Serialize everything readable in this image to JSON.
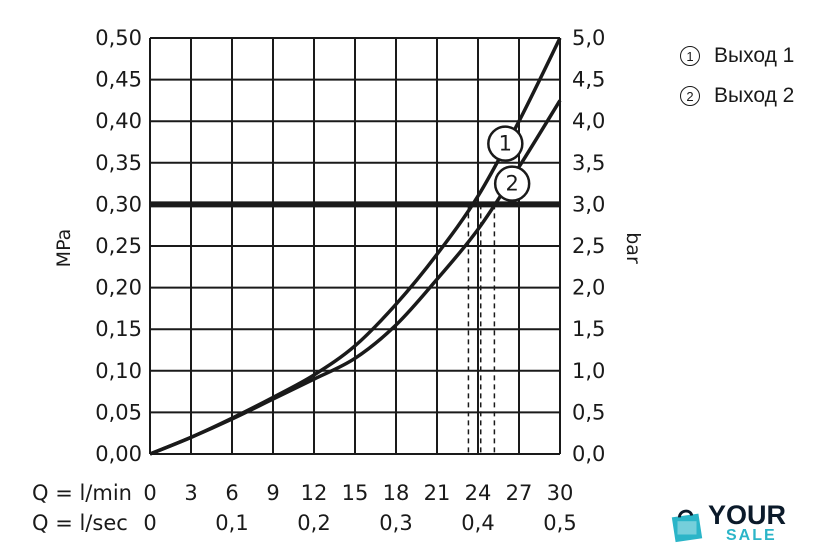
{
  "chart_data": {
    "type": "line",
    "ylabel_left": "MPa",
    "ylabel_right": "bar",
    "x_row1_label": "Q = l/min",
    "x_row2_label": "Q = l/sec",
    "x_range": [
      0,
      30
    ],
    "y_range": [
      0,
      0.5
    ],
    "x_ticks_lmin": [
      "0",
      "3",
      "6",
      "9",
      "12",
      "15",
      "18",
      "21",
      "24",
      "27",
      "30"
    ],
    "x_ticks_lsec": [
      "0",
      "0,1",
      "0,2",
      "0,3",
      "0,4",
      "0,5"
    ],
    "y_ticks_left": [
      "0,00",
      "0,05",
      "0,10",
      "0,15",
      "0,20",
      "0,25",
      "0,30",
      "0,35",
      "0,40",
      "0,45",
      "0,50"
    ],
    "y_ticks_right": [
      "0,0",
      "0,5",
      "1,0",
      "1,5",
      "2,0",
      "2,5",
      "3,0",
      "3,5",
      "4,0",
      "4,5",
      "5,0"
    ],
    "grid": true,
    "reference_line": {
      "y": 0.3
    },
    "dashed_markers": [
      23.3,
      24.2,
      25.2
    ],
    "series": [
      {
        "name": "1",
        "points": [
          [
            0,
            0
          ],
          [
            3,
            0.02
          ],
          [
            6,
            0.043
          ],
          [
            9,
            0.068
          ],
          [
            12,
            0.095
          ],
          [
            15,
            0.13
          ],
          [
            18,
            0.18
          ],
          [
            21,
            0.24
          ],
          [
            24,
            0.31
          ],
          [
            27,
            0.4
          ],
          [
            30,
            0.5
          ]
        ]
      },
      {
        "name": "2",
        "points": [
          [
            0,
            0
          ],
          [
            3,
            0.02
          ],
          [
            6,
            0.042
          ],
          [
            9,
            0.066
          ],
          [
            12,
            0.09
          ],
          [
            15,
            0.115
          ],
          [
            18,
            0.155
          ],
          [
            21,
            0.21
          ],
          [
            24,
            0.27
          ],
          [
            27,
            0.345
          ],
          [
            30,
            0.425
          ]
        ]
      }
    ]
  },
  "legend": {
    "items": [
      {
        "num": "1",
        "label": "Выход 1"
      },
      {
        "num": "2",
        "label": "Выход 2"
      }
    ]
  },
  "logo": {
    "line1": "YOUR",
    "line2": "SALE",
    "icon": "shopping-bag-icon",
    "color_dark": "#0b1a2a",
    "color_accent": "#2bb5c8"
  }
}
